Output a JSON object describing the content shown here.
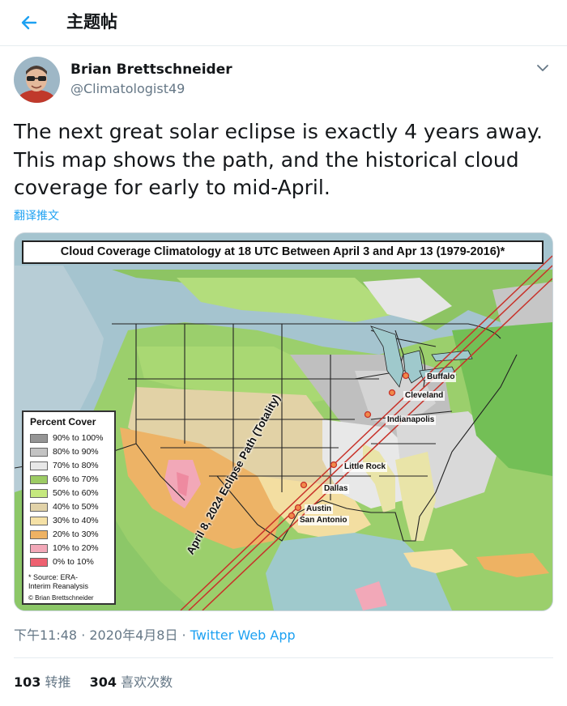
{
  "header": {
    "title": "主题帖"
  },
  "tweet": {
    "author_name": "Brian Brettschneider",
    "author_handle": "@Climatologist49",
    "text": "The next great solar eclipse is exactly 4 years away. This map shows the path, and the historical cloud coverage for early to mid-April.",
    "translate_label": "翻译推文",
    "time": "下午11:48 · 2020年4月8日",
    "separator": " · ",
    "app": "Twitter Web App"
  },
  "stats": {
    "retweets_count": "103",
    "retweets_label": "转推",
    "likes_count": "304",
    "likes_label": "喜欢次数"
  },
  "map": {
    "title": "Cloud Coverage Climatology at 18 UTC Between April 3 and Apr 13 (1979-2016)*",
    "path_label": "April 8, 2024 Eclipse Path (Totality)",
    "legend_title": "Percent Cover",
    "legend": [
      {
        "label": "90% to 100%",
        "color": "#959595"
      },
      {
        "label": "80% to 90%",
        "color": "#c3c3c3"
      },
      {
        "label": "70% to 80%",
        "color": "#e8e8e8"
      },
      {
        "label": "60% to 70%",
        "color": "#9ccb64"
      },
      {
        "label": "50% to 60%",
        "color": "#c5e87e"
      },
      {
        "label": "40% to 50%",
        "color": "#e1d2a8"
      },
      {
        "label": "30% to 40%",
        "color": "#f5e1a6"
      },
      {
        "label": "20% to 30%",
        "color": "#eeb263"
      },
      {
        "label": "10% to 20%",
        "color": "#f2a8b8"
      },
      {
        "label": "0% to 10%",
        "color": "#ee6070"
      }
    ],
    "source_line1": "* Source: ERA-",
    "source_line2": "Interim Reanalysis",
    "credit": "© Brian Brettschneider",
    "cities": [
      "Buffalo",
      "Cleveland",
      "Indianapolis",
      "Little Rock",
      "Dallas",
      "Austin",
      "San Antonio"
    ],
    "path_color": "#c8322a"
  }
}
